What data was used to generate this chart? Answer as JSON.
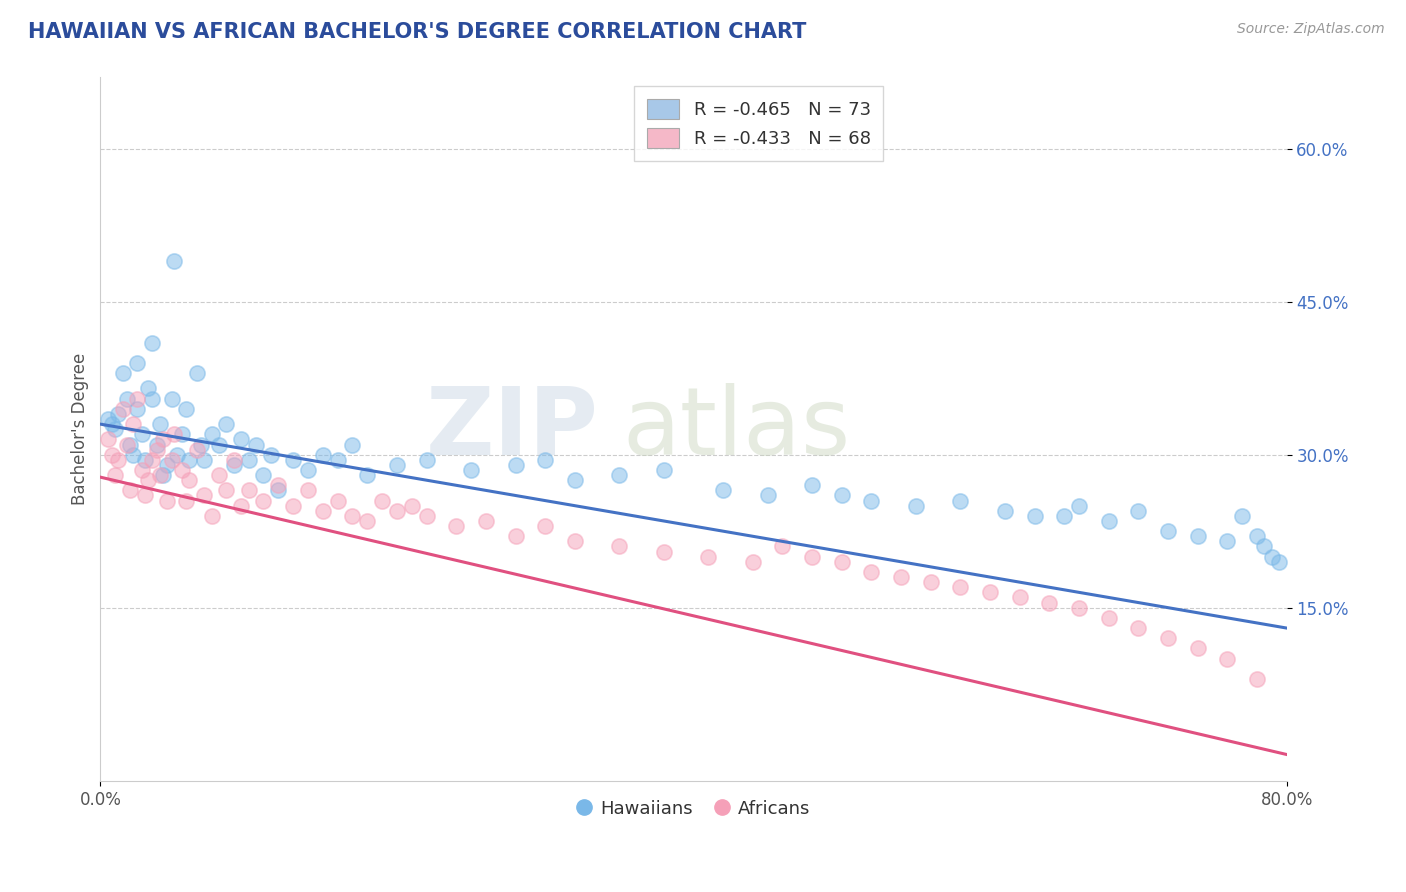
{
  "title": "HAWAIIAN VS AFRICAN BACHELOR'S DEGREE CORRELATION CHART",
  "source_text": "Source: ZipAtlas.com",
  "ylabel": "Bachelor's Degree",
  "xlim": [
    0.0,
    0.8
  ],
  "ylim": [
    -0.02,
    0.67
  ],
  "ytick_positions": [
    0.15,
    0.3,
    0.45,
    0.6
  ],
  "ytick_labels": [
    "15.0%",
    "30.0%",
    "45.0%",
    "60.0%"
  ],
  "legend_entries": [
    {
      "label": "R = -0.465   N = 73",
      "color": "#a8c8e8"
    },
    {
      "label": "R = -0.433   N = 68",
      "color": "#f5b8c8"
    }
  ],
  "hawaiian_color": "#7ab8e8",
  "african_color": "#f5a0b8",
  "hawaiian_line_color": "#4472c4",
  "african_line_color": "#e05080",
  "legend_label_hawaiians": "Hawaiians",
  "legend_label_africans": "Africans",
  "watermark": "ZIPatlas",
  "title_color": "#2b4c9b",
  "title_fontsize": 15,
  "source_fontsize": 10,
  "axis_label_color": "#555555",
  "tick_color": "#555555",
  "ytick_color": "#4472c4",
  "grid_color": "#cccccc",
  "background_color": "#ffffff",
  "hawaiian_line_intercept": 0.33,
  "hawaiian_line_slope": -0.25,
  "african_line_intercept": 0.278,
  "african_line_slope": -0.34,
  "hawaiian_scatter": {
    "x": [
      0.005,
      0.008,
      0.01,
      0.012,
      0.015,
      0.018,
      0.02,
      0.022,
      0.025,
      0.025,
      0.028,
      0.03,
      0.032,
      0.035,
      0.035,
      0.038,
      0.04,
      0.042,
      0.045,
      0.048,
      0.05,
      0.052,
      0.055,
      0.058,
      0.06,
      0.065,
      0.068,
      0.07,
      0.075,
      0.08,
      0.085,
      0.09,
      0.095,
      0.1,
      0.105,
      0.11,
      0.115,
      0.12,
      0.13,
      0.14,
      0.15,
      0.16,
      0.17,
      0.18,
      0.2,
      0.22,
      0.25,
      0.28,
      0.3,
      0.32,
      0.35,
      0.38,
      0.42,
      0.45,
      0.48,
      0.5,
      0.52,
      0.55,
      0.58,
      0.61,
      0.63,
      0.65,
      0.66,
      0.68,
      0.7,
      0.72,
      0.74,
      0.76,
      0.77,
      0.78,
      0.785,
      0.79,
      0.795
    ],
    "y": [
      0.335,
      0.33,
      0.325,
      0.34,
      0.38,
      0.355,
      0.31,
      0.3,
      0.39,
      0.345,
      0.32,
      0.295,
      0.365,
      0.41,
      0.355,
      0.31,
      0.33,
      0.28,
      0.29,
      0.355,
      0.49,
      0.3,
      0.32,
      0.345,
      0.295,
      0.38,
      0.31,
      0.295,
      0.32,
      0.31,
      0.33,
      0.29,
      0.315,
      0.295,
      0.31,
      0.28,
      0.3,
      0.265,
      0.295,
      0.285,
      0.3,
      0.295,
      0.31,
      0.28,
      0.29,
      0.295,
      0.285,
      0.29,
      0.295,
      0.275,
      0.28,
      0.285,
      0.265,
      0.26,
      0.27,
      0.26,
      0.255,
      0.25,
      0.255,
      0.245,
      0.24,
      0.24,
      0.25,
      0.235,
      0.245,
      0.225,
      0.22,
      0.215,
      0.24,
      0.22,
      0.21,
      0.2,
      0.195
    ]
  },
  "african_scatter": {
    "x": [
      0.005,
      0.008,
      0.01,
      0.012,
      0.015,
      0.018,
      0.02,
      0.022,
      0.025,
      0.028,
      0.03,
      0.032,
      0.035,
      0.038,
      0.04,
      0.042,
      0.045,
      0.048,
      0.05,
      0.055,
      0.058,
      0.06,
      0.065,
      0.07,
      0.075,
      0.08,
      0.085,
      0.09,
      0.095,
      0.1,
      0.11,
      0.12,
      0.13,
      0.14,
      0.15,
      0.16,
      0.17,
      0.18,
      0.19,
      0.2,
      0.21,
      0.22,
      0.24,
      0.26,
      0.28,
      0.3,
      0.32,
      0.35,
      0.38,
      0.41,
      0.44,
      0.46,
      0.48,
      0.5,
      0.52,
      0.54,
      0.56,
      0.58,
      0.6,
      0.62,
      0.64,
      0.66,
      0.68,
      0.7,
      0.72,
      0.74,
      0.76,
      0.78
    ],
    "y": [
      0.315,
      0.3,
      0.28,
      0.295,
      0.345,
      0.31,
      0.265,
      0.33,
      0.355,
      0.285,
      0.26,
      0.275,
      0.295,
      0.305,
      0.28,
      0.315,
      0.255,
      0.295,
      0.32,
      0.285,
      0.255,
      0.275,
      0.305,
      0.26,
      0.24,
      0.28,
      0.265,
      0.295,
      0.25,
      0.265,
      0.255,
      0.27,
      0.25,
      0.265,
      0.245,
      0.255,
      0.24,
      0.235,
      0.255,
      0.245,
      0.25,
      0.24,
      0.23,
      0.235,
      0.22,
      0.23,
      0.215,
      0.21,
      0.205,
      0.2,
      0.195,
      0.21,
      0.2,
      0.195,
      0.185,
      0.18,
      0.175,
      0.17,
      0.165,
      0.16,
      0.155,
      0.15,
      0.14,
      0.13,
      0.12,
      0.11,
      0.1,
      0.08
    ]
  }
}
